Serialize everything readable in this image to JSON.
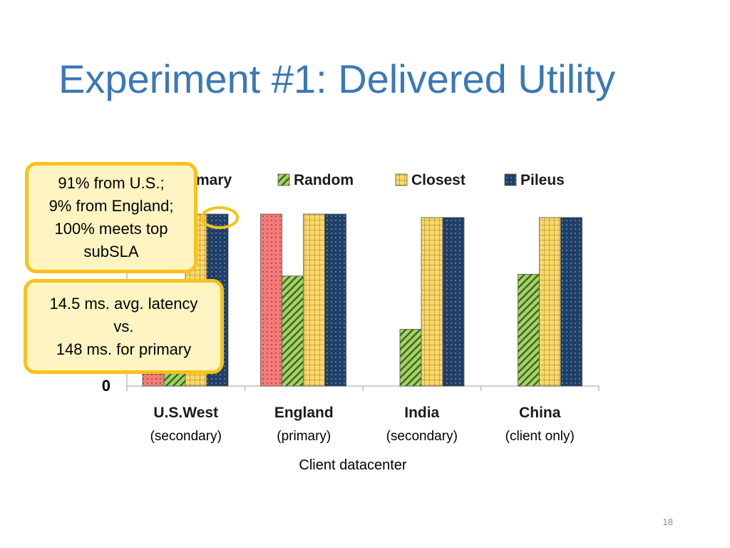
{
  "slide": {
    "title": "Experiment #1: Delivered Utility",
    "number": "18"
  },
  "callouts": [
    {
      "text": "91% from U.S.;\n9% from England;\n100% meets top\nsubSLA"
    },
    {
      "text": "14.5 ms. avg. latency\nvs.\n148 ms. for primary"
    }
  ],
  "chart_data": {
    "type": "bar",
    "categories": [
      "U.S.West",
      "England",
      "India",
      "China"
    ],
    "category_sublabels": [
      "(secondary)",
      "(primary)",
      "(secondary)",
      "(client only)"
    ],
    "xlabel": "Client datacenter",
    "ylabel": "",
    "y_tick_labels": [
      "0"
    ],
    "ylim": [
      0,
      1.0
    ],
    "legend_position": "top",
    "series": [
      {
        "name": "Primary",
        "color": "#f47b78",
        "pattern": "dots",
        "values": [
          0.07,
          1.0,
          0,
          0
        ]
      },
      {
        "name": "Random",
        "color": "#a6d26a",
        "pattern": "diagonal-stripes",
        "values": [
          0.35,
          0.64,
          0.33,
          0.65
        ]
      },
      {
        "name": "Closest",
        "color": "#fbd86a",
        "pattern": "grid",
        "values": [
          1.0,
          1.0,
          0.98,
          0.98
        ]
      },
      {
        "name": "Pileus",
        "color": "#1f3f66",
        "pattern": "dots",
        "values": [
          1.0,
          1.0,
          0.98,
          0.98
        ]
      }
    ]
  }
}
